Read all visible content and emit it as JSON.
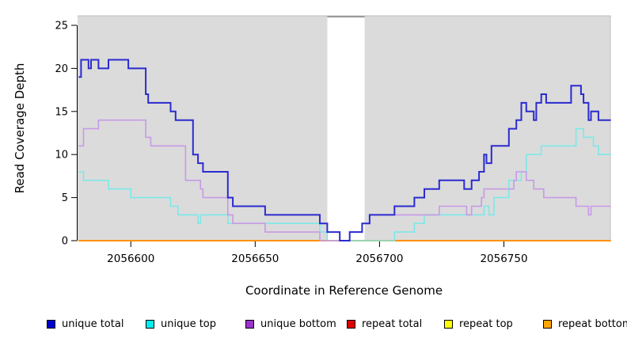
{
  "chart_data": {
    "type": "step-line",
    "title": "",
    "xlabel": "Coordinate in Reference Genome",
    "ylabel": "Read Coverage Depth",
    "x_ticks": [
      {
        "value": 2056600,
        "label": "2056600"
      },
      {
        "value": 2056650,
        "label": "2056650"
      },
      {
        "value": 2056700,
        "label": "2056700"
      },
      {
        "value": 2056750,
        "label": "2056750"
      }
    ],
    "y_ticks": [
      {
        "value": 0,
        "label": "0"
      },
      {
        "value": 5,
        "label": "5"
      },
      {
        "value": 10,
        "label": "10"
      },
      {
        "value": 15,
        "label": "15"
      },
      {
        "value": 20,
        "label": "20"
      },
      {
        "value": 25,
        "label": "25"
      }
    ],
    "xlim": [
      2056579,
      2056793
    ],
    "ylim": [
      0,
      26
    ],
    "grid": false,
    "legend_position": "bottom",
    "plot_bg_color": "#dbdbdb",
    "gap_band": {
      "start": 2056679,
      "end": 2056694,
      "fill": "#ffffff",
      "cap_color": "#8c8c8c"
    },
    "series": [
      {
        "name": "unique-total",
        "legend_label": "unique total",
        "line_color": "#2b2bd0",
        "swatch_color": "#0000cc",
        "line_width": 2,
        "points": [
          [
            2056579,
            19
          ],
          [
            2056580,
            21
          ],
          [
            2056583,
            20
          ],
          [
            2056584,
            21
          ],
          [
            2056587,
            20
          ],
          [
            2056591,
            21
          ],
          [
            2056599,
            20
          ],
          [
            2056606,
            17
          ],
          [
            2056607,
            16
          ],
          [
            2056616,
            15
          ],
          [
            2056618,
            14
          ],
          [
            2056625,
            10
          ],
          [
            2056627,
            9
          ],
          [
            2056629,
            8
          ],
          [
            2056639,
            5
          ],
          [
            2056641,
            4
          ],
          [
            2056654,
            3
          ],
          [
            2056676,
            2
          ],
          [
            2056679,
            1
          ],
          [
            2056684,
            0
          ],
          [
            2056688,
            1
          ],
          [
            2056693,
            2
          ],
          [
            2056696,
            3
          ],
          [
            2056706,
            4
          ],
          [
            2056714,
            5
          ],
          [
            2056718,
            6
          ],
          [
            2056724,
            7
          ],
          [
            2056734,
            6
          ],
          [
            2056737,
            7
          ],
          [
            2056740,
            8
          ],
          [
            2056742,
            10
          ],
          [
            2056743,
            9
          ],
          [
            2056745,
            11
          ],
          [
            2056752,
            13
          ],
          [
            2056755,
            14
          ],
          [
            2056757,
            16
          ],
          [
            2056759,
            15
          ],
          [
            2056762,
            14
          ],
          [
            2056763,
            16
          ],
          [
            2056765,
            17
          ],
          [
            2056767,
            16
          ],
          [
            2056777,
            18
          ],
          [
            2056781,
            17
          ],
          [
            2056782,
            16
          ],
          [
            2056784,
            14
          ],
          [
            2056785,
            15
          ],
          [
            2056788,
            14
          ],
          [
            2056793,
            14
          ]
        ]
      },
      {
        "name": "unique-top",
        "legend_label": "unique top",
        "line_color": "#7de8e8",
        "swatch_color": "#00eeee",
        "line_width": 1.6,
        "points": [
          [
            2056579,
            8
          ],
          [
            2056581,
            7
          ],
          [
            2056591,
            6
          ],
          [
            2056600,
            5
          ],
          [
            2056616,
            4
          ],
          [
            2056619,
            3
          ],
          [
            2056627,
            2
          ],
          [
            2056628,
            3
          ],
          [
            2056639,
            2
          ],
          [
            2056676,
            1
          ],
          [
            2056679,
            0
          ],
          [
            2056706,
            1
          ],
          [
            2056714,
            2
          ],
          [
            2056718,
            3
          ],
          [
            2056742,
            4
          ],
          [
            2056744,
            3
          ],
          [
            2056746,
            5
          ],
          [
            2056752,
            7
          ],
          [
            2056757,
            8
          ],
          [
            2056759,
            10
          ],
          [
            2056765,
            11
          ],
          [
            2056779,
            13
          ],
          [
            2056782,
            12
          ],
          [
            2056786,
            11
          ],
          [
            2056788,
            10
          ],
          [
            2056793,
            10
          ]
        ]
      },
      {
        "name": "unique-bottom",
        "legend_label": "unique bottom",
        "line_color": "#c79ae6",
        "swatch_color": "#9933cc",
        "line_width": 1.6,
        "points": [
          [
            2056579,
            11
          ],
          [
            2056581,
            13
          ],
          [
            2056587,
            14
          ],
          [
            2056606,
            12
          ],
          [
            2056608,
            11
          ],
          [
            2056622,
            7
          ],
          [
            2056628,
            6
          ],
          [
            2056629,
            5
          ],
          [
            2056639,
            3
          ],
          [
            2056641,
            2
          ],
          [
            2056654,
            1
          ],
          [
            2056676,
            0
          ],
          [
            2056688,
            1
          ],
          [
            2056693,
            2
          ],
          [
            2056696,
            3
          ],
          [
            2056724,
            4
          ],
          [
            2056735,
            3
          ],
          [
            2056737,
            4
          ],
          [
            2056741,
            5
          ],
          [
            2056742,
            6
          ],
          [
            2056754,
            7
          ],
          [
            2056755,
            8
          ],
          [
            2056759,
            7
          ],
          [
            2056762,
            6
          ],
          [
            2056766,
            5
          ],
          [
            2056779,
            4
          ],
          [
            2056784,
            3
          ],
          [
            2056785,
            4
          ],
          [
            2056793,
            4
          ]
        ]
      },
      {
        "name": "repeat-total",
        "legend_label": "repeat total",
        "line_color": "#cc0000",
        "swatch_color": "#dd0000",
        "line_width": 1.5,
        "points": [
          [
            2056579,
            0
          ],
          [
            2056793,
            0
          ]
        ]
      },
      {
        "name": "repeat-top",
        "legend_label": "repeat top",
        "line_color": "#f2f200",
        "swatch_color": "#ffff00",
        "line_width": 1.5,
        "points": [
          [
            2056579,
            0
          ],
          [
            2056793,
            0
          ]
        ]
      },
      {
        "name": "repeat-bottom",
        "legend_label": "repeat bottom",
        "line_color": "#ff9100",
        "swatch_color": "#ffa500",
        "line_width": 2,
        "points": [
          [
            2056579,
            0
          ],
          [
            2056793,
            0
          ]
        ]
      }
    ]
  }
}
